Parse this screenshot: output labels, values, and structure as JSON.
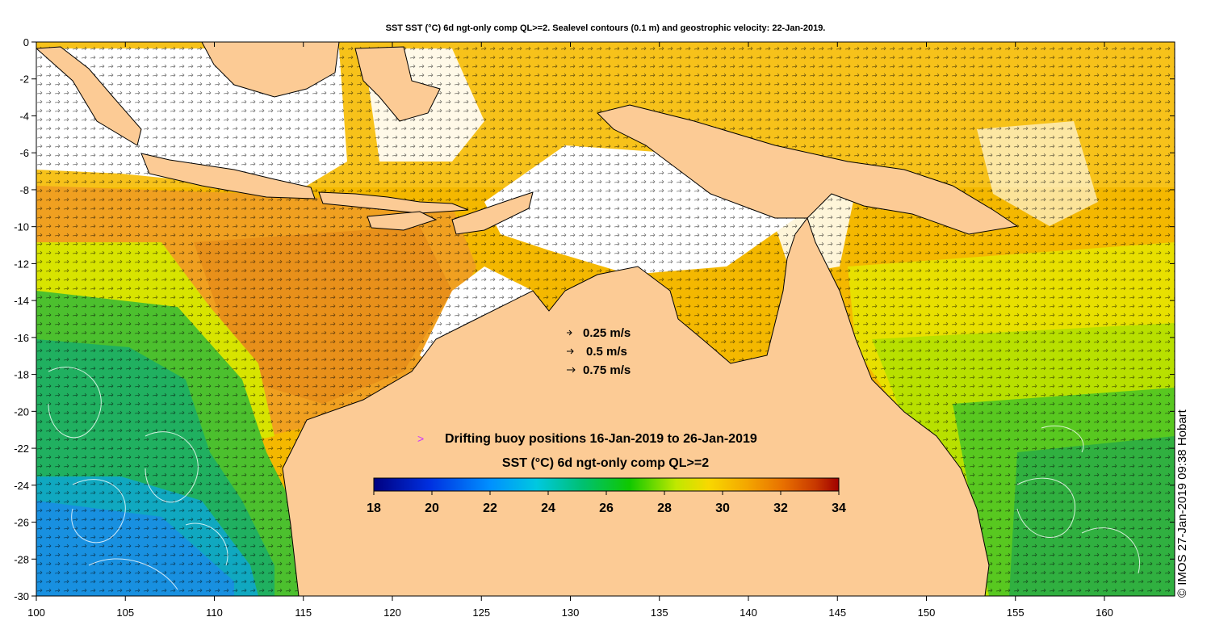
{
  "title": "SST SST (°C) 6d ngt-only comp QL>=2. Sealevel contours (0.1 m) and geostrophic velocity: 22-Jan-2019.",
  "x_ticks": [
    "100",
    "105",
    "110",
    "115",
    "120",
    "125",
    "130",
    "135",
    "140",
    "145",
    "150",
    "155",
    "160"
  ],
  "y_ticks": [
    "0",
    "-2",
    "-4",
    "-6",
    "-8",
    "-10",
    "-12",
    "-14",
    "-16",
    "-18",
    "-20",
    "-22",
    "-24",
    "-26",
    "-28",
    "-30"
  ],
  "velocity_legend": [
    {
      "label": "0.25 m/s",
      "speed": 0.25
    },
    {
      "label": "0.5 m/s",
      "speed": 0.5
    },
    {
      "label": "0.75 m/s",
      "speed": 0.75
    }
  ],
  "buoy_legend": {
    "symbol": ">",
    "label": "Drifting buoy positions 16-Jan-2019 to 26-Jan-2019",
    "color": "#cc33ff"
  },
  "colorbar": {
    "title": "SST (°C) 6d ngt-only comp QL>=2",
    "min": 18,
    "max": 34,
    "tick_labels": [
      "18",
      "20",
      "22",
      "24",
      "26",
      "28",
      "30",
      "32",
      "34"
    ]
  },
  "copyright": "© IMOS 27-Jan-2019 09:38 Hobart",
  "colors": {
    "land": "#fccb95",
    "coast": "#000000",
    "contours": "#ffffff",
    "sst_scale": [
      "#000080",
      "#0000cc",
      "#0060ff",
      "#00b0ff",
      "#00d8c8",
      "#00c060",
      "#00cc00",
      "#a0e000",
      "#f0e800",
      "#f8c000",
      "#f09000",
      "#e06000",
      "#c03000",
      "#a00000"
    ]
  }
}
